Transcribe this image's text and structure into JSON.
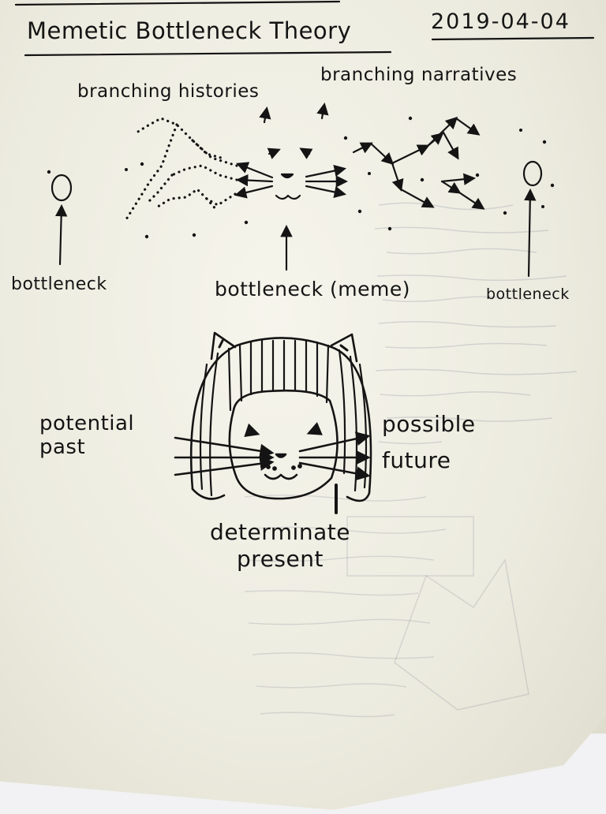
{
  "page": {
    "title": "Memetic Bottleneck Theory",
    "date": "2019-04-04"
  },
  "top_diagram": {
    "left_label": "branching histories",
    "right_label": "branching narratives",
    "bottleneck_left": "bottleneck",
    "bottleneck_center": "bottleneck (meme)",
    "bottleneck_right": "bottleneck"
  },
  "bottom_diagram": {
    "past_label": "potential past",
    "future_label": "possible future",
    "present_label": "determinate present"
  },
  "colors": {
    "ink": "#141414",
    "paper": "#efeee3",
    "ghost_ink": "#5a6a8a"
  }
}
